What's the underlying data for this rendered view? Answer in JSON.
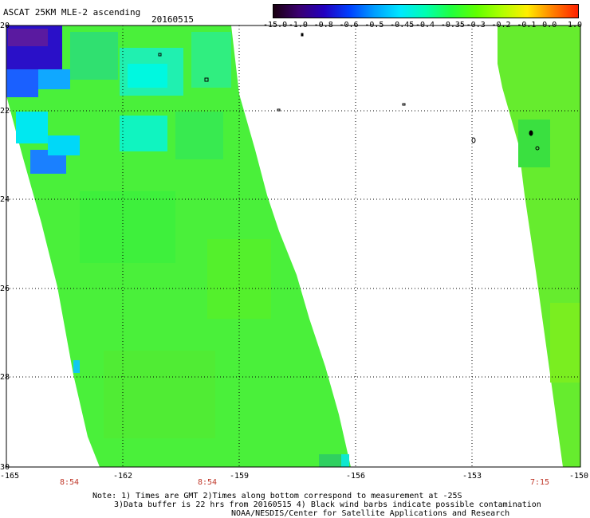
{
  "header": {
    "title": "ASCAT 25KM MLE-2 ascending",
    "date": "20160515"
  },
  "colorbar": {
    "labels": [
      "-15.0",
      "-1.0",
      "-0.8",
      "-0.6",
      "-0.5",
      "-0.45",
      "-0.4",
      "-0.35",
      "-0.3",
      "-0.2",
      "-0.1",
      "0.0",
      "1.0"
    ],
    "colors": [
      "#1a0010",
      "#3a0070",
      "#2200c0",
      "#0040ff",
      "#00a0ff",
      "#00e8ff",
      "#00ffb0",
      "#20ff40",
      "#60ff00",
      "#b0ff00",
      "#ffee00",
      "#ff8000",
      "#ff2000"
    ]
  },
  "map": {
    "lat_labels": [
      "-20",
      "-22",
      "-24",
      "-26",
      "-28",
      "-30"
    ],
    "lon_labels": [
      "-165",
      "-162",
      "-159",
      "-156",
      "-153",
      "-150"
    ],
    "times": [
      "8:54",
      "8:54",
      "7:15"
    ]
  },
  "notes": {
    "line1": "Note: 1) Times are GMT 2)Times along bottom correspond to measurement at -25S",
    "line2": "3)Data buffer is 22 hrs from 20160515 4) Black wind barbs indicate possible contamination",
    "line3": "NOAA/NESDIS/Center for Satellite Applications and Research"
  }
}
